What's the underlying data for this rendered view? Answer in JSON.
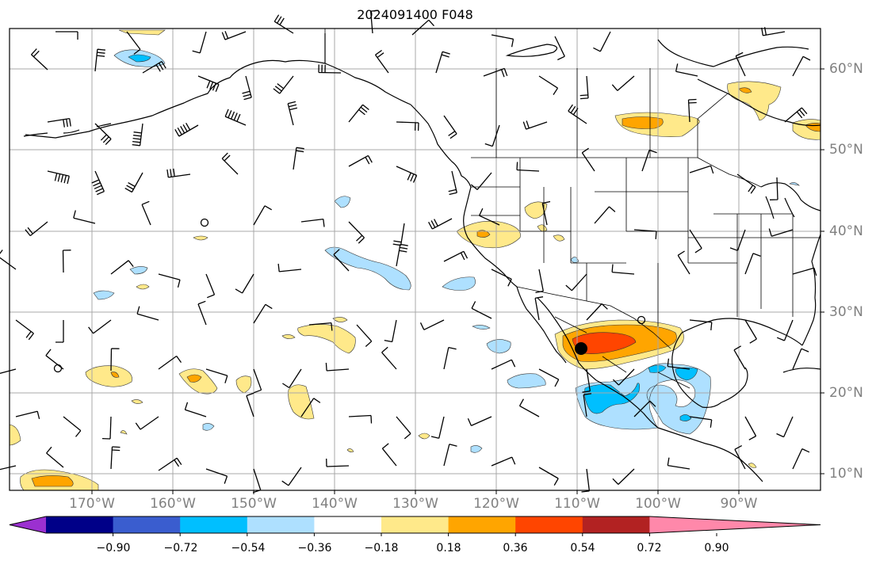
{
  "title": "2024091400 F048",
  "lon_labels": [
    "170°W",
    "160°W",
    "150°W",
    "140°W",
    "130°W",
    "120°W",
    "110°W",
    "100°W",
    "90°W"
  ],
  "lat_labels": [
    "60°N",
    "50°N",
    "40°N",
    "30°N",
    "20°N",
    "10°N"
  ],
  "colorbar": {
    "ticks": [
      "−0.90",
      "−0.72",
      "−0.54",
      "−0.36",
      "−0.18",
      "0.18",
      "0.36",
      "0.54",
      "0.72",
      "0.90"
    ],
    "colors": [
      "#9b30d0",
      "#000088",
      "#3a5dcf",
      "#00bfff",
      "#aee0ff",
      "#ffffff",
      "#ffe98a",
      "#ffa500",
      "#ff4500",
      "#b22222",
      "#ff88aa"
    ]
  },
  "legend_colors": {
    "pos_low": "#ffe98a",
    "pos_mid": "#ffa500",
    "pos_high": "#ff4500",
    "neg_low": "#aee0ff",
    "neg_mid": "#00bfff"
  }
}
